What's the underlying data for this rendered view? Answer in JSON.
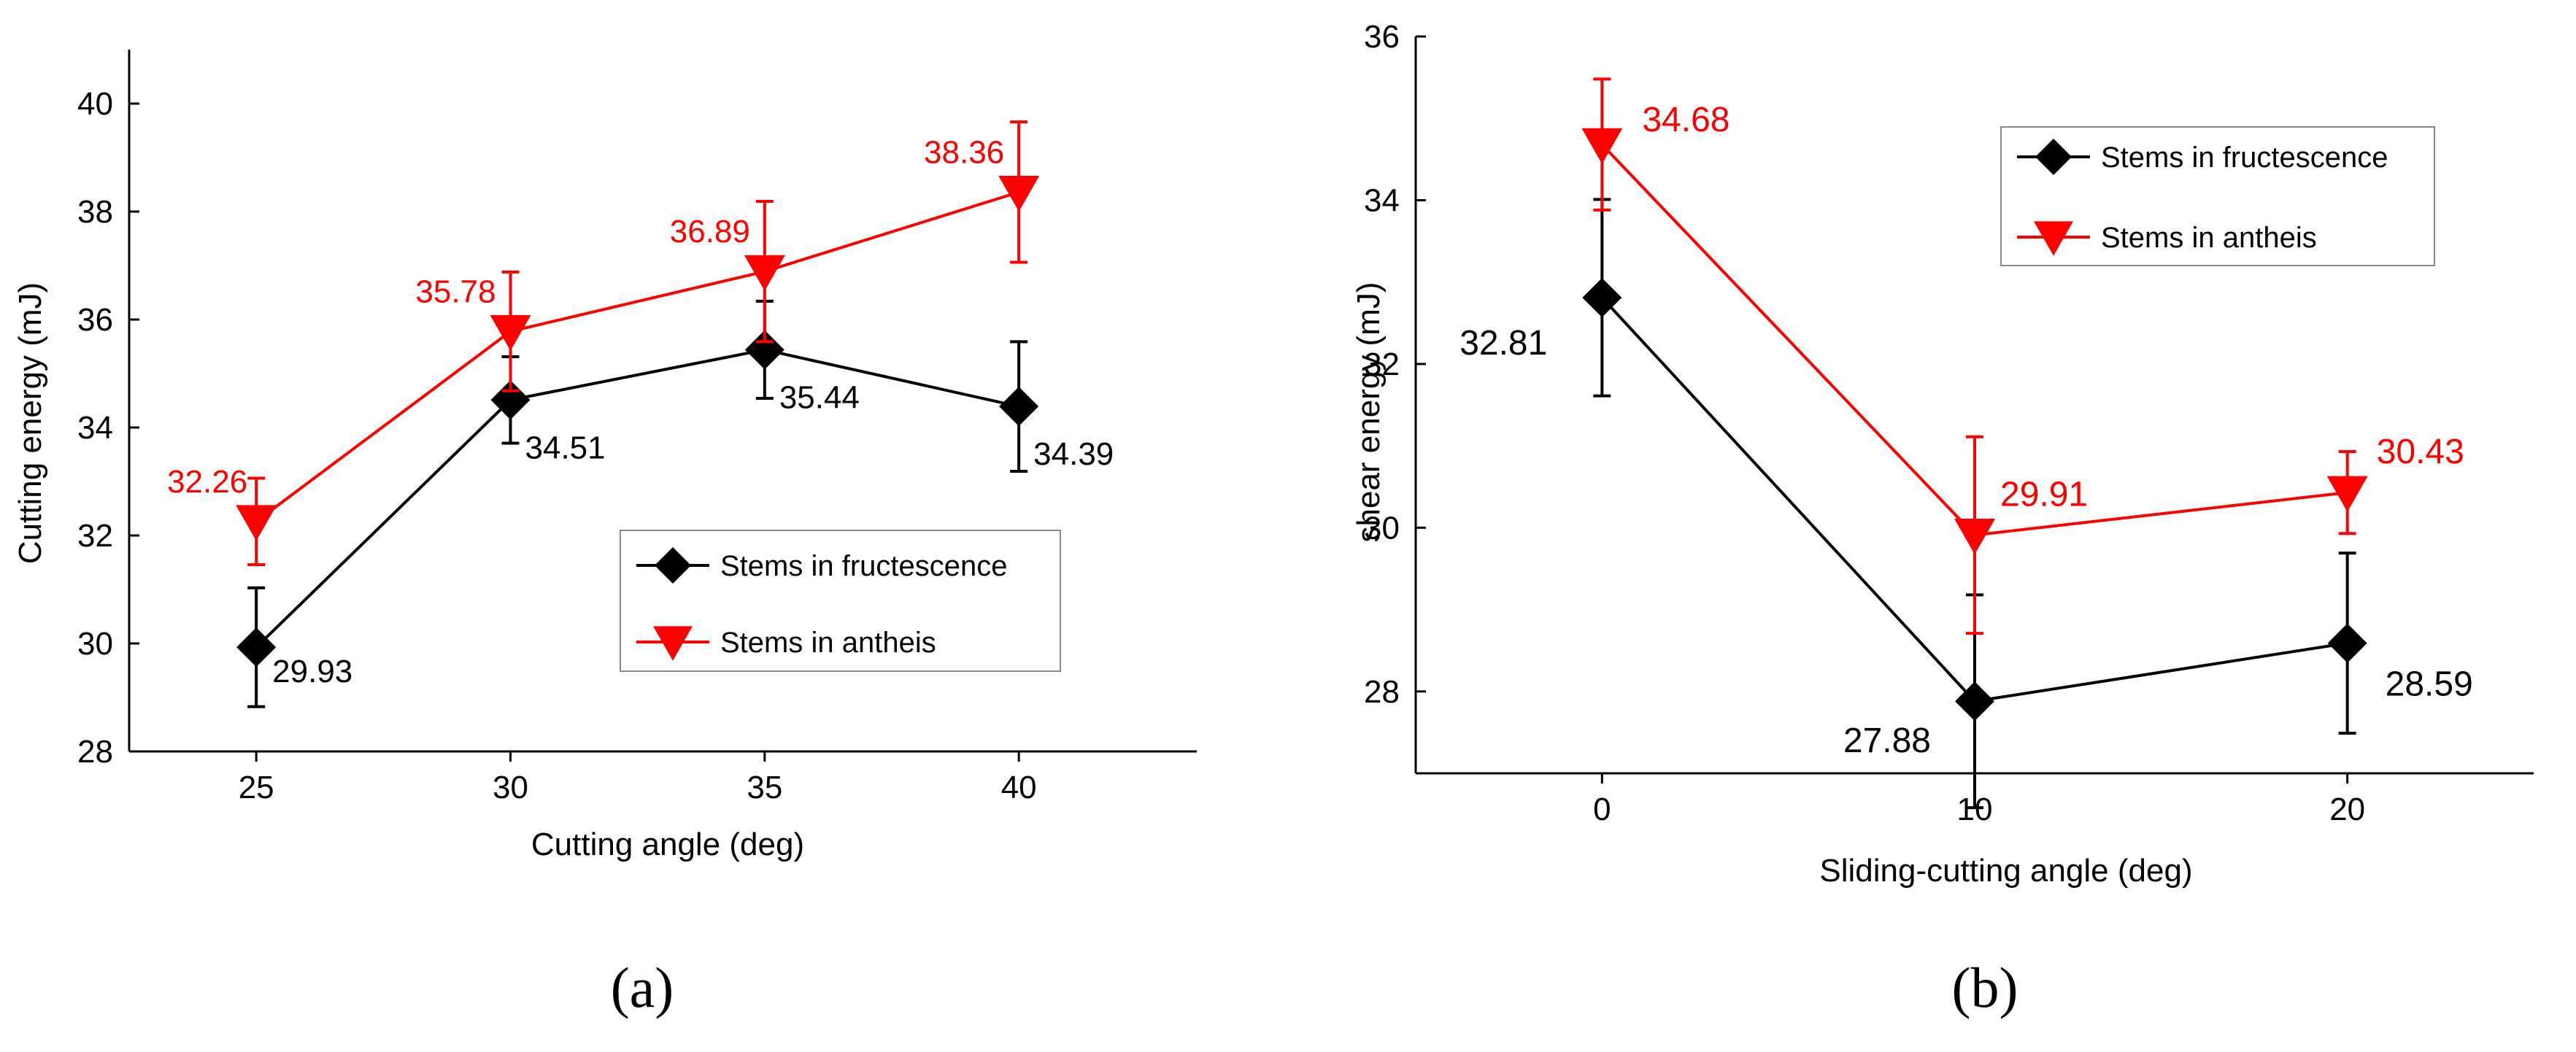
{
  "chart_data": [
    {
      "type": "line",
      "panel_label": "(a)",
      "title": "",
      "xlabel": "Cutting angle (deg)",
      "ylabel": "Cutting energy (mJ)",
      "x": [
        25,
        30,
        35,
        40
      ],
      "xlim": [
        22.5,
        43.5
      ],
      "ylim": [
        28,
        41
      ],
      "xticks": [
        25,
        30,
        35,
        40
      ],
      "yticks": [
        28,
        30,
        32,
        34,
        36,
        38,
        40
      ],
      "legend_position": "center-right",
      "series": [
        {
          "name": "Stems in fructescence",
          "color": "#000000",
          "marker": "diamond",
          "values": [
            29.93,
            34.51,
            35.44,
            34.39
          ],
          "errors": [
            1.1,
            0.8,
            0.9,
            1.2
          ],
          "labels": [
            "29.93",
            "34.51",
            "35.44",
            "34.39"
          ]
        },
        {
          "name": "Stems in antheis",
          "color": "#ff0000",
          "marker": "triangle-down",
          "values": [
            32.26,
            35.78,
            36.89,
            38.36
          ],
          "errors": [
            0.8,
            1.1,
            1.3,
            1.3
          ],
          "labels": [
            "32.26",
            "35.78",
            "36.89",
            "38.36"
          ]
        }
      ]
    },
    {
      "type": "line",
      "panel_label": "(b)",
      "title": "",
      "xlabel": "Sliding-cutting angle (deg)",
      "ylabel": "shear energy (mJ)",
      "x": [
        0,
        10,
        20
      ],
      "xlim": [
        -5,
        25
      ],
      "ylim": [
        27,
        36
      ],
      "xticks": [
        0,
        10,
        20
      ],
      "yticks": [
        28,
        30,
        32,
        34,
        36
      ],
      "legend_position": "top-right",
      "series": [
        {
          "name": "Stems in fructescence",
          "color": "#000000",
          "marker": "diamond",
          "values": [
            32.81,
            27.88,
            28.59
          ],
          "errors": [
            1.2,
            1.3,
            1.1
          ],
          "labels": [
            "32.81",
            "27.88",
            "28.59"
          ]
        },
        {
          "name": "Stems in antheis",
          "color": "#ff0000",
          "marker": "triangle-down",
          "values": [
            34.68,
            29.91,
            30.43
          ],
          "errors": [
            0.8,
            1.2,
            0.5
          ],
          "labels": [
            "34.68",
            "29.91",
            "30.43"
          ]
        }
      ]
    }
  ]
}
